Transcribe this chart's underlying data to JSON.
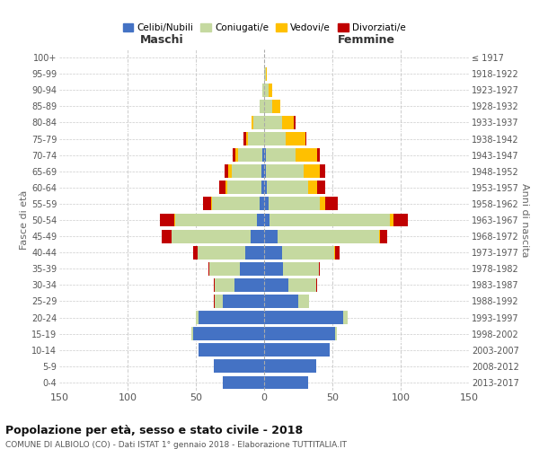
{
  "age_groups": [
    "100+",
    "95-99",
    "90-94",
    "85-89",
    "80-84",
    "75-79",
    "70-74",
    "65-69",
    "60-64",
    "55-59",
    "50-54",
    "45-49",
    "40-44",
    "35-39",
    "30-34",
    "25-29",
    "20-24",
    "15-19",
    "10-14",
    "5-9",
    "0-4"
  ],
  "birth_years": [
    "≤ 1917",
    "1918-1922",
    "1923-1927",
    "1928-1932",
    "1933-1937",
    "1938-1942",
    "1943-1947",
    "1948-1952",
    "1953-1957",
    "1958-1962",
    "1963-1967",
    "1968-1972",
    "1973-1977",
    "1978-1982",
    "1983-1987",
    "1988-1992",
    "1993-1997",
    "1998-2002",
    "2003-2007",
    "2008-2012",
    "2013-2017"
  ],
  "male_celibe": [
    0,
    0,
    0,
    0,
    0,
    0,
    1,
    2,
    2,
    3,
    5,
    10,
    14,
    18,
    22,
    30,
    48,
    52,
    48,
    37,
    30
  ],
  "male_coniug": [
    0,
    0,
    1,
    3,
    8,
    12,
    18,
    22,
    25,
    35,
    60,
    58,
    35,
    22,
    14,
    6,
    2,
    1,
    0,
    0,
    0
  ],
  "male_vedovo": [
    0,
    0,
    0,
    0,
    1,
    1,
    2,
    2,
    1,
    1,
    1,
    0,
    0,
    0,
    0,
    0,
    0,
    0,
    0,
    0,
    0
  ],
  "male_divor": [
    0,
    0,
    0,
    0,
    0,
    2,
    2,
    3,
    5,
    6,
    10,
    7,
    3,
    1,
    1,
    1,
    0,
    0,
    0,
    0,
    0
  ],
  "female_nubile": [
    0,
    0,
    0,
    0,
    0,
    0,
    1,
    1,
    2,
    3,
    4,
    10,
    13,
    14,
    18,
    25,
    58,
    52,
    48,
    38,
    32
  ],
  "female_coniug": [
    0,
    1,
    3,
    6,
    13,
    16,
    22,
    28,
    30,
    38,
    88,
    74,
    38,
    26,
    20,
    8,
    3,
    1,
    0,
    0,
    0
  ],
  "female_vedova": [
    0,
    1,
    3,
    6,
    9,
    14,
    16,
    12,
    7,
    4,
    3,
    1,
    1,
    0,
    0,
    0,
    0,
    0,
    0,
    0,
    0
  ],
  "female_divor": [
    0,
    0,
    0,
    0,
    1,
    1,
    2,
    4,
    6,
    9,
    10,
    5,
    3,
    1,
    1,
    0,
    0,
    0,
    0,
    0,
    0
  ],
  "color_celibe": "#4472c4",
  "color_coniugato": "#c5d9a0",
  "color_vedovo": "#ffc000",
  "color_divorziato": "#c00000",
  "title": "Popolazione per età, sesso e stato civile - 2018",
  "subtitle": "COMUNE DI ALBIOLO (CO) - Dati ISTAT 1° gennaio 2018 - Elaborazione TUTTITALIA.IT",
  "xlabel_left": "Maschi",
  "xlabel_right": "Femmine",
  "ylabel_left": "Fasce di età",
  "ylabel_right": "Anni di nascita",
  "bg_color": "#ffffff",
  "grid_color": "#cccccc",
  "legend_labels": [
    "Celibi/Nubili",
    "Coniugati/e",
    "Vedovi/e",
    "Divorziati/e"
  ]
}
